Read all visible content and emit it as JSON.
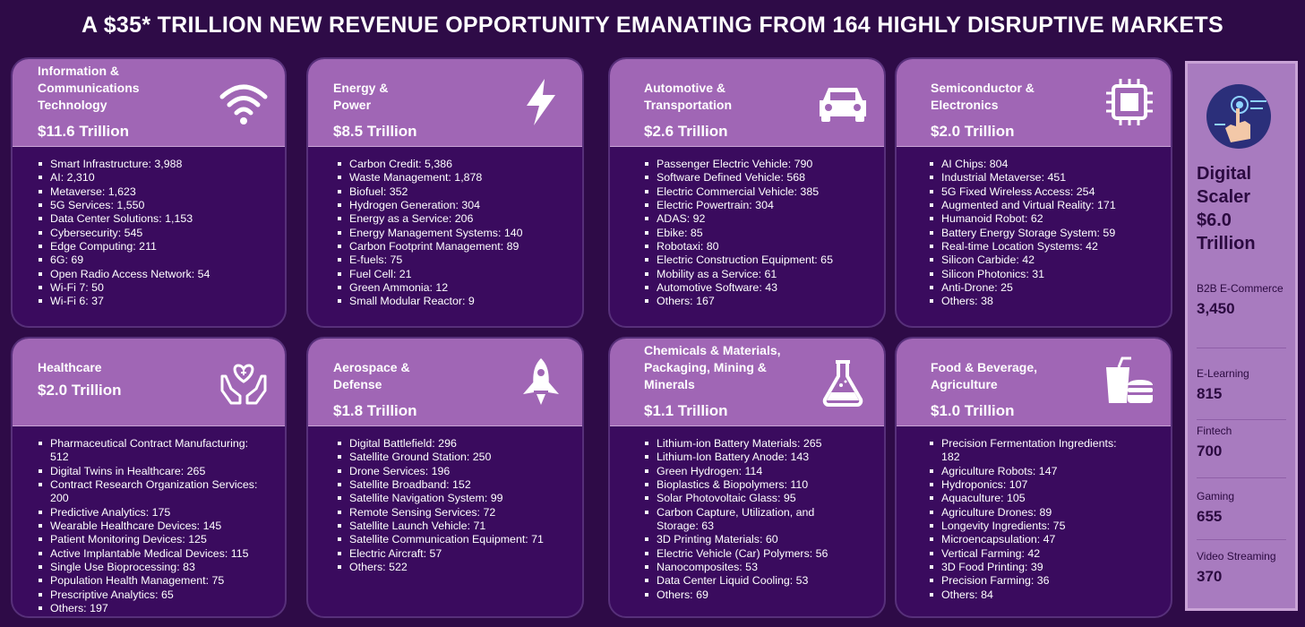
{
  "title": "A $35* TRILLION NEW REVENUE OPPORTUNITY EMANATING FROM 164 HIGHLY DISRUPTIVE MARKETS",
  "cards": [
    {
      "name": "Information & Communications Technology",
      "value": "$11.6 Trillion",
      "icon": "wifi-icon",
      "items": [
        "Smart Infrastructure: 3,988",
        "AI: 2,310",
        "Metaverse: 1,623",
        "5G Services: 1,550",
        "Data Center Solutions: 1,153",
        "Cybersecurity: 545",
        "Edge Computing: 211",
        "6G: 69",
        "Open Radio Access Network: 54",
        "Wi-Fi 7: 50",
        "Wi-Fi 6: 37"
      ]
    },
    {
      "name": "Energy & Power",
      "value": "$8.5 Trillion",
      "icon": "lightning-bolt-icon",
      "items": [
        "Carbon Credit: 5,386",
        "Waste Management: 1,878",
        "Biofuel: 352",
        "Hydrogen Generation: 304",
        "Energy as a Service: 206",
        "Energy Management Systems: 140",
        "Carbon Footprint Management: 89",
        "E-fuels: 75",
        "Fuel Cell: 21",
        "Green Ammonia: 12",
        "Small Modular Reactor: 9"
      ]
    },
    {
      "name": "Automotive & Transportation",
      "value": "$2.6 Trillion",
      "icon": "car-icon",
      "items": [
        "Passenger Electric Vehicle: 790",
        "Software Defined Vehicle: 568",
        "Electric Commercial Vehicle: 385",
        "Electric Powertrain: 304",
        "ADAS: 92",
        "Ebike: 85",
        "Robotaxi: 80",
        "Electric Construction Equipment: 65",
        "Mobility as a Service: 61",
        "Automotive Software: 43",
        "Others: 167"
      ]
    },
    {
      "name": "Semiconductor & Electronics",
      "value": "$2.0 Trillion",
      "icon": "chip-icon",
      "items": [
        "AI Chips: 804",
        "Industrial Metaverse: 451",
        "5G Fixed Wireless Access: 254",
        "Augmented and Virtual Reality: 171",
        "Humanoid Robot: 62",
        "Battery Energy Storage System: 59",
        "Real-time Location Systems: 42",
        "Silicon Carbide: 42",
        "Silicon Photonics: 31",
        "Anti-Drone: 25",
        "Others: 38"
      ]
    },
    {
      "name": "Healthcare",
      "value": "$2.0 Trillion",
      "icon": "heart-hands-icon",
      "items": [
        "Pharmaceutical Contract Manufacturing: 512",
        "Digital Twins in Healthcare: 265",
        "Contract Research Organization Services: 200",
        "Predictive Analytics: 175",
        "Wearable Healthcare Devices: 145",
        "Patient Monitoring Devices: 125",
        "Active Implantable Medical Devices: 115",
        "Single Use Bioprocessing: 83",
        "Population Health Management: 75",
        "Prescriptive Analytics: 65",
        "Others: 197"
      ]
    },
    {
      "name": "Aerospace & Defense",
      "value": "$1.8 Trillion",
      "icon": "rocket-icon",
      "items": [
        "Digital Battlefield: 296",
        "Satellite Ground Station: 250",
        "Drone Services: 196",
        "Satellite Broadband: 152",
        "Satellite Navigation System: 99",
        "Remote Sensing Services: 72",
        "Satellite Launch Vehicle: 71",
        "Satellite Communication Equipment: 71",
        "Electric Aircraft: 57",
        "Others: 522"
      ]
    },
    {
      "name": "Chemicals & Materials, Packaging, Mining & Minerals",
      "value": "$1.1 Trillion",
      "icon": "flask-icon",
      "items": [
        "Lithium-ion Battery Materials: 265",
        "Lithium-Ion Battery Anode: 143",
        "Green Hydrogen: 114",
        "Bioplastics & Biopolymers: 110",
        "Solar Photovoltaic Glass: 95",
        "Carbon Capture, Utilization, and Storage: 63",
        "3D Printing Materials: 60",
        "Electric Vehicle (Car) Polymers: 56",
        "Nanocomposites: 53",
        "Data Center Liquid Cooling: 53",
        "Others: 69"
      ]
    },
    {
      "name": "Food & Beverage, Agriculture",
      "value": "$1.0 Trillion",
      "icon": "food-drink-icon",
      "items": [
        "Precision Fermentation Ingredients: 182",
        "Agriculture Robots: 147",
        "Hydroponics: 107",
        "Aquaculture: 105",
        "Agriculture Drones: 89",
        "Longevity Ingredients: 75",
        "Microencapsulation: 47",
        "Vertical Farming: 42",
        "3D Food Printing: 39",
        "Precision Farming: 36",
        "Others: 84"
      ]
    }
  ],
  "side": {
    "title_lines": [
      "Digital",
      "Scaler",
      "$6.0",
      "Trillion"
    ],
    "icon": "touch-hand-icon",
    "items": [
      {
        "label": "B2B E-Commerce",
        "value": "3,450"
      },
      {
        "label": "E-Learning",
        "value": "815"
      },
      {
        "label": "Fintech",
        "value": "700"
      },
      {
        "label": "Gaming",
        "value": "655"
      },
      {
        "label": "Video Streaming",
        "value": "370"
      }
    ]
  },
  "colors": {
    "background": "#2e0b47",
    "card_body": "#3a0b5e",
    "card_header": "#a066b5",
    "side_panel": "#a87bbf",
    "side_text": "#2b0a40"
  }
}
